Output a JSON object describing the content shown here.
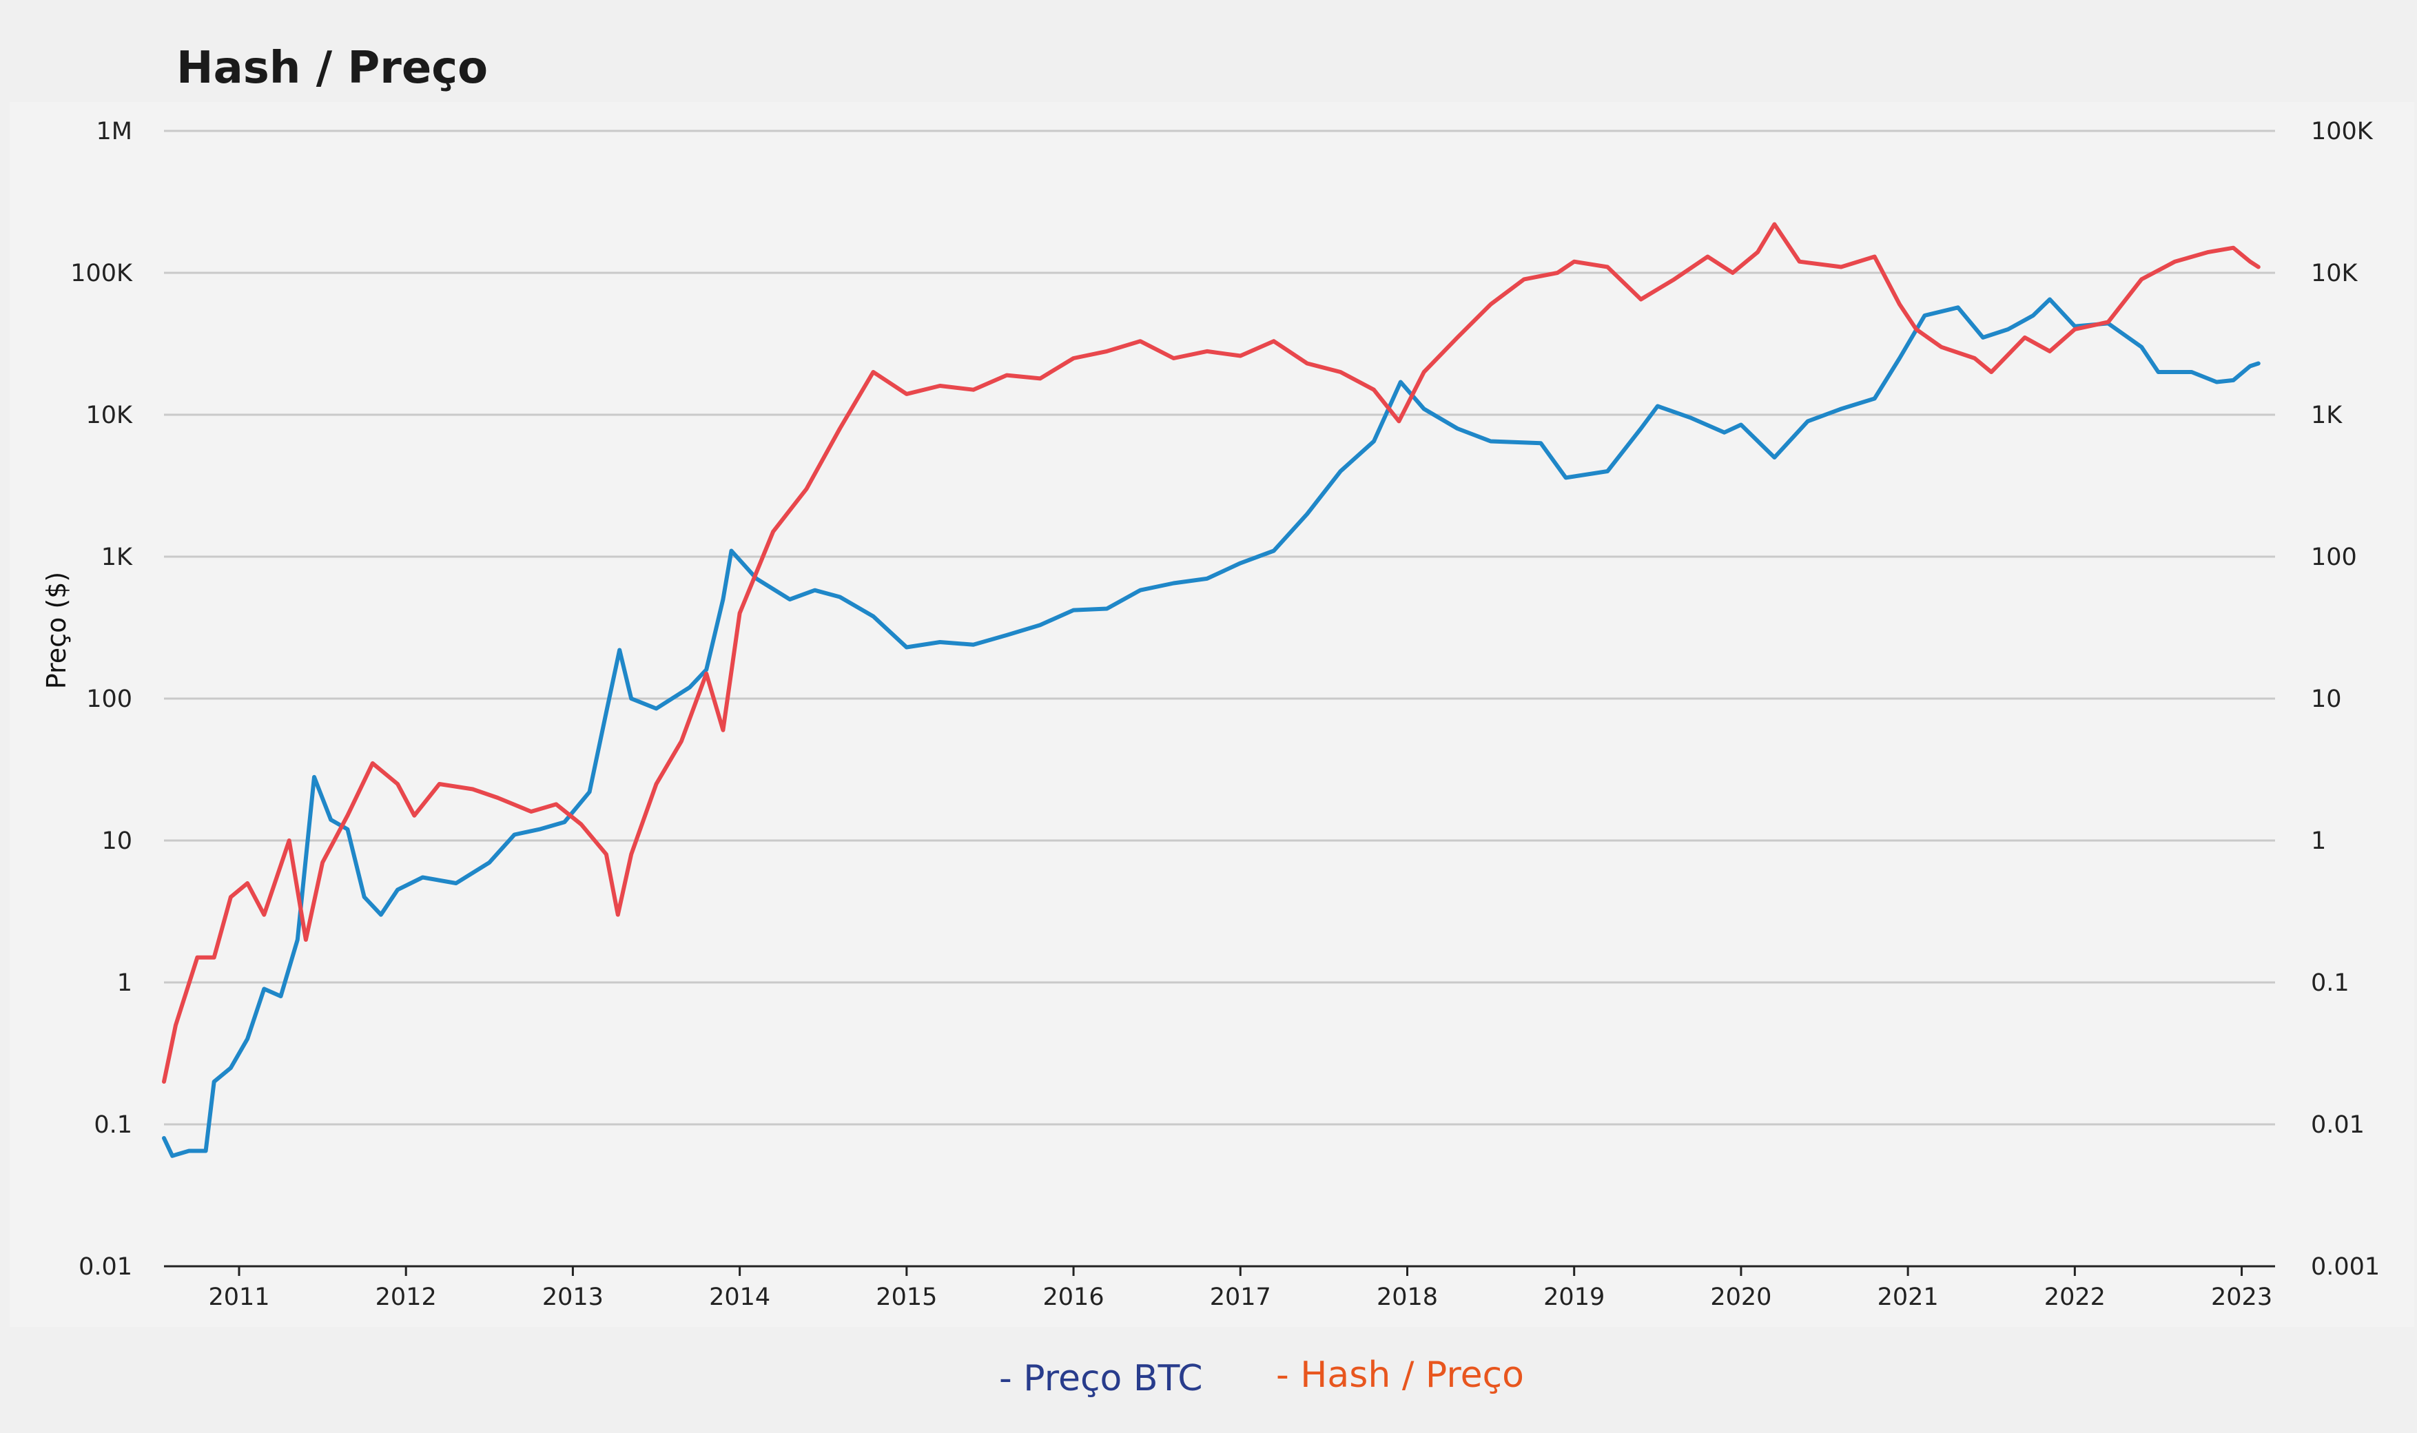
{
  "chart_data": {
    "type": "line",
    "title": "Hash / Preço",
    "ylabel": "Preço ($)",
    "y2label": "",
    "xlabel": "",
    "x_ticks": [
      "2011",
      "2012",
      "2013",
      "2014",
      "2015",
      "2016",
      "2017",
      "2018",
      "2019",
      "2020",
      "2021",
      "2022",
      "2023"
    ],
    "x_range": [
      2010.55,
      2023.2
    ],
    "y_left": {
      "scale": "log",
      "range": [
        0.01,
        1000000
      ],
      "tick_values": [
        0.01,
        0.1,
        1,
        10,
        100,
        1000,
        10000,
        100000,
        1000000
      ],
      "tick_labels": [
        "0.01",
        "0.1",
        "1",
        "10",
        "100",
        "1K",
        "10K",
        "100K",
        "1M"
      ]
    },
    "y_right": {
      "scale": "log",
      "range": [
        0.001,
        100000
      ],
      "tick_values": [
        0.001,
        0.01,
        0.1,
        1,
        10,
        100,
        1000,
        10000,
        100000
      ],
      "tick_labels": [
        "0.001",
        "0.01",
        "0.1",
        "1",
        "10",
        "100",
        "1K",
        "10K",
        "100K"
      ]
    },
    "grid": true,
    "legend_position": "bottom-center",
    "series": [
      {
        "name": "- Preço BTC",
        "axis": "left",
        "color": "#1f87c8",
        "legend_color": "#283c8c",
        "points": [
          [
            2010.55,
            0.08
          ],
          [
            2010.6,
            0.06
          ],
          [
            2010.7,
            0.065
          ],
          [
            2010.8,
            0.065
          ],
          [
            2010.85,
            0.2
          ],
          [
            2010.95,
            0.25
          ],
          [
            2011.05,
            0.4
          ],
          [
            2011.15,
            0.9
          ],
          [
            2011.25,
            0.8
          ],
          [
            2011.35,
            2
          ],
          [
            2011.45,
            28
          ],
          [
            2011.55,
            14
          ],
          [
            2011.65,
            12
          ],
          [
            2011.75,
            4
          ],
          [
            2011.85,
            3
          ],
          [
            2011.95,
            4.5
          ],
          [
            2012.1,
            5.5
          ],
          [
            2012.3,
            5
          ],
          [
            2012.5,
            7
          ],
          [
            2012.65,
            11
          ],
          [
            2012.8,
            12
          ],
          [
            2012.95,
            13.5
          ],
          [
            2013.1,
            22
          ],
          [
            2013.2,
            80
          ],
          [
            2013.28,
            220
          ],
          [
            2013.35,
            100
          ],
          [
            2013.5,
            85
          ],
          [
            2013.7,
            120
          ],
          [
            2013.8,
            160
          ],
          [
            2013.9,
            500
          ],
          [
            2013.95,
            1100
          ],
          [
            2014.1,
            700
          ],
          [
            2014.3,
            500
          ],
          [
            2014.45,
            580
          ],
          [
            2014.6,
            520
          ],
          [
            2014.8,
            380
          ],
          [
            2015.0,
            230
          ],
          [
            2015.2,
            250
          ],
          [
            2015.4,
            240
          ],
          [
            2015.6,
            280
          ],
          [
            2015.8,
            330
          ],
          [
            2016.0,
            420
          ],
          [
            2016.2,
            430
          ],
          [
            2016.4,
            580
          ],
          [
            2016.6,
            650
          ],
          [
            2016.8,
            700
          ],
          [
            2017.0,
            900
          ],
          [
            2017.2,
            1100
          ],
          [
            2017.4,
            2000
          ],
          [
            2017.6,
            4000
          ],
          [
            2017.8,
            6500
          ],
          [
            2017.96,
            17000
          ],
          [
            2018.1,
            11000
          ],
          [
            2018.3,
            8000
          ],
          [
            2018.5,
            6500
          ],
          [
            2018.8,
            6300
          ],
          [
            2018.95,
            3600
          ],
          [
            2019.2,
            4000
          ],
          [
            2019.4,
            8000
          ],
          [
            2019.5,
            11500
          ],
          [
            2019.7,
            9500
          ],
          [
            2019.9,
            7500
          ],
          [
            2020.0,
            8500
          ],
          [
            2020.2,
            5000
          ],
          [
            2020.4,
            9000
          ],
          [
            2020.6,
            11000
          ],
          [
            2020.8,
            13000
          ],
          [
            2020.95,
            25000
          ],
          [
            2021.1,
            50000
          ],
          [
            2021.3,
            57000
          ],
          [
            2021.45,
            35000
          ],
          [
            2021.6,
            40000
          ],
          [
            2021.75,
            50000
          ],
          [
            2021.85,
            65000
          ],
          [
            2022.0,
            42000
          ],
          [
            2022.2,
            44000
          ],
          [
            2022.4,
            30000
          ],
          [
            2022.5,
            20000
          ],
          [
            2022.7,
            20000
          ],
          [
            2022.85,
            17000
          ],
          [
            2022.95,
            17500
          ],
          [
            2023.05,
            22000
          ],
          [
            2023.1,
            23000
          ]
        ]
      },
      {
        "name": "- Hash / Preço",
        "axis": "right",
        "color": "#e8474c",
        "legend_color": "#e8561e",
        "points": [
          [
            2010.55,
            0.02
          ],
          [
            2010.62,
            0.05
          ],
          [
            2010.75,
            0.15
          ],
          [
            2010.85,
            0.15
          ],
          [
            2010.95,
            0.4
          ],
          [
            2011.05,
            0.5
          ],
          [
            2011.15,
            0.3
          ],
          [
            2011.3,
            1.0
          ],
          [
            2011.4,
            0.2
          ],
          [
            2011.5,
            0.7
          ],
          [
            2011.65,
            1.5
          ],
          [
            2011.8,
            3.5
          ],
          [
            2011.95,
            2.5
          ],
          [
            2012.05,
            1.5
          ],
          [
            2012.2,
            2.5
          ],
          [
            2012.4,
            2.3
          ],
          [
            2012.55,
            2.0
          ],
          [
            2012.75,
            1.6
          ],
          [
            2012.9,
            1.8
          ],
          [
            2013.05,
            1.3
          ],
          [
            2013.2,
            0.8
          ],
          [
            2013.27,
            0.3
          ],
          [
            2013.35,
            0.8
          ],
          [
            2013.5,
            2.5
          ],
          [
            2013.65,
            5
          ],
          [
            2013.8,
            15
          ],
          [
            2013.9,
            6
          ],
          [
            2014.0,
            40
          ],
          [
            2014.2,
            150
          ],
          [
            2014.4,
            300
          ],
          [
            2014.6,
            800
          ],
          [
            2014.8,
            2000
          ],
          [
            2015.0,
            1400
          ],
          [
            2015.2,
            1600
          ],
          [
            2015.4,
            1500
          ],
          [
            2015.6,
            1900
          ],
          [
            2015.8,
            1800
          ],
          [
            2016.0,
            2500
          ],
          [
            2016.2,
            2800
          ],
          [
            2016.4,
            3300
          ],
          [
            2016.6,
            2500
          ],
          [
            2016.8,
            2800
          ],
          [
            2017.0,
            2600
          ],
          [
            2017.2,
            3300
          ],
          [
            2017.4,
            2300
          ],
          [
            2017.6,
            2000
          ],
          [
            2017.8,
            1500
          ],
          [
            2017.95,
            900
          ],
          [
            2018.1,
            2000
          ],
          [
            2018.3,
            3500
          ],
          [
            2018.5,
            6000
          ],
          [
            2018.7,
            9000
          ],
          [
            2018.9,
            10000
          ],
          [
            2019.0,
            12000
          ],
          [
            2019.2,
            11000
          ],
          [
            2019.4,
            6500
          ],
          [
            2019.6,
            9000
          ],
          [
            2019.8,
            13000
          ],
          [
            2019.95,
            10000
          ],
          [
            2020.1,
            14000
          ],
          [
            2020.2,
            22000
          ],
          [
            2020.35,
            12000
          ],
          [
            2020.6,
            11000
          ],
          [
            2020.8,
            13000
          ],
          [
            2020.95,
            6000
          ],
          [
            2021.05,
            4000
          ],
          [
            2021.2,
            3000
          ],
          [
            2021.4,
            2500
          ],
          [
            2021.5,
            2000
          ],
          [
            2021.7,
            3500
          ],
          [
            2021.85,
            2800
          ],
          [
            2022.0,
            4000
          ],
          [
            2022.2,
            4500
          ],
          [
            2022.4,
            9000
          ],
          [
            2022.6,
            12000
          ],
          [
            2022.8,
            14000
          ],
          [
            2022.95,
            15000
          ],
          [
            2023.05,
            12000
          ],
          [
            2023.1,
            11000
          ]
        ]
      }
    ]
  }
}
